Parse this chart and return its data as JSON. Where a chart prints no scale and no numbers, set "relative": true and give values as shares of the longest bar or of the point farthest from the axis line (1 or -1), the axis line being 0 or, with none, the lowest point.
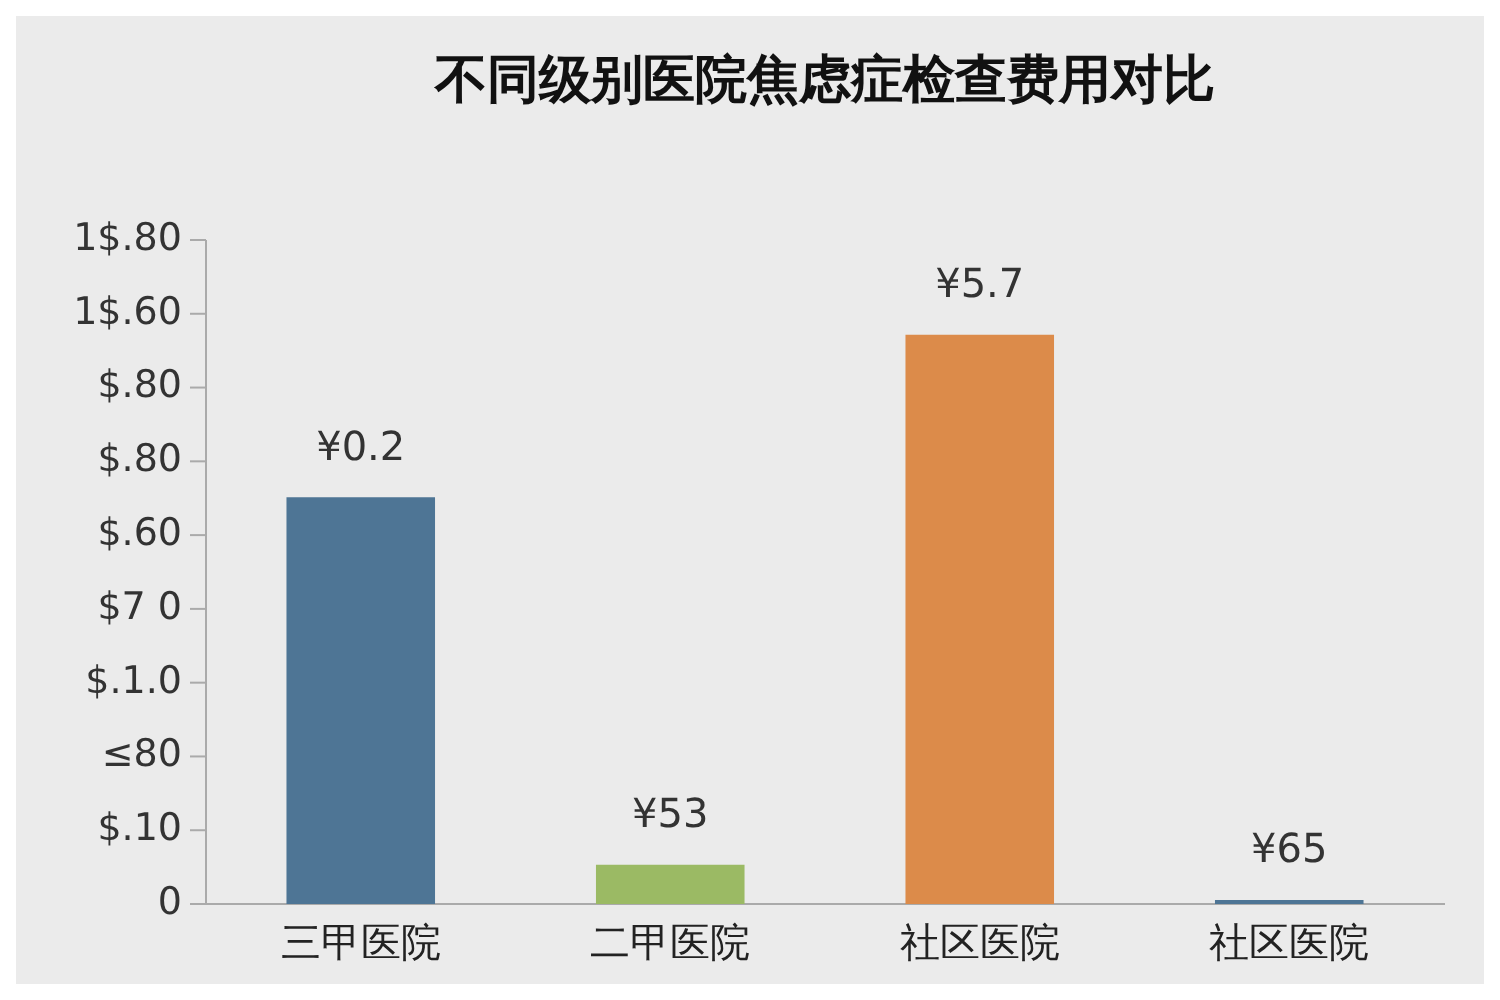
{
  "chart_data": {
    "type": "bar",
    "title": "不同级别医院焦虑症检查费用对比",
    "categories": [
      "三甲医院",
      "二甲医院",
      "社区医院",
      "社区医院"
    ],
    "values": [
      0.714,
      0.069,
      1,
      0.007
    ],
    "colors": [
      "#4e7595",
      "#9bba64",
      "#dc8b4a",
      "#4e7595"
    ],
    "relative": true,
    "annotations": [
      "1$.80",
      "1$.60",
      "$.80",
      "$.80",
      "$.60",
      "$7 0",
      "$.1.0",
      "≤80",
      "$.10",
      "0",
      "¥0.2",
      "¥53",
      "¥5.7",
      "¥65"
    ],
    "grid": false,
    "legend": false
  }
}
